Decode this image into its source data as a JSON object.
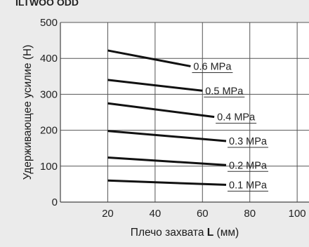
{
  "header": {
    "fragment": "ILTWOO ODD"
  },
  "chart_data": {
    "type": "line",
    "title": "",
    "xlabel_prefix": "Плечо захвата ",
    "xlabel_symbol": "L",
    "xlabel_suffix": " (мм)",
    "ylabel": "Удерживающее усилие (Н)",
    "xlim": [
      0,
      105
    ],
    "ylim": [
      0,
      500
    ],
    "xticks": [
      20,
      40,
      60,
      80,
      100
    ],
    "yticks": [
      0,
      100,
      200,
      300,
      400,
      500
    ],
    "grid": true,
    "colors": {
      "background": "#ebebeb",
      "plot_area": "#ffffff",
      "line": "#111111",
      "grid": "#555555"
    },
    "series": [
      {
        "name": "0.6 MPa",
        "x": [
          20,
          55
        ],
        "y": [
          422,
          378
        ]
      },
      {
        "name": "0.5 MPa",
        "x": [
          20,
          60
        ],
        "y": [
          340,
          310
        ]
      },
      {
        "name": "0.4 MPa",
        "x": [
          20,
          65
        ],
        "y": [
          275,
          237
        ]
      },
      {
        "name": "0.3 MPa",
        "x": [
          20,
          70
        ],
        "y": [
          198,
          170
        ]
      },
      {
        "name": "0.2 MPa",
        "x": [
          20,
          70
        ],
        "y": [
          124,
          103
        ]
      },
      {
        "name": "0.1 MPa",
        "x": [
          20,
          70
        ],
        "y": [
          60,
          48
        ]
      }
    ]
  }
}
